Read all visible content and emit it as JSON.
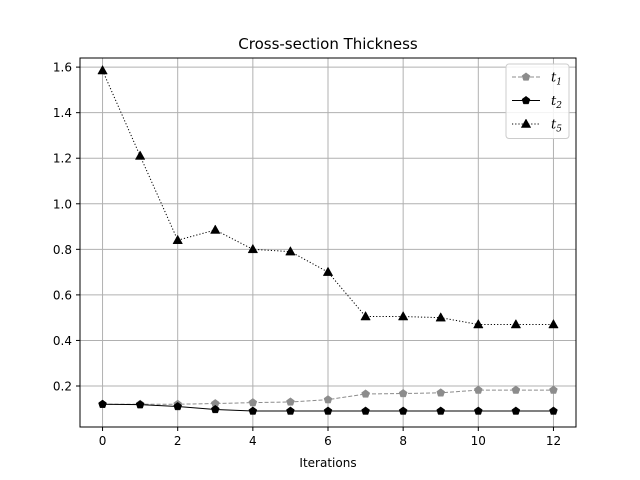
{
  "chart_data": {
    "type": "line",
    "title": "Cross-section Thickness",
    "xlabel": "Iterations",
    "ylabel": "",
    "xlim": [
      -0.6,
      12.6
    ],
    "ylim": [
      0.02,
      1.64
    ],
    "xticks": [
      0,
      2,
      4,
      6,
      8,
      10,
      12
    ],
    "yticks": [
      0.2,
      0.4,
      0.6,
      0.8,
      1.0,
      1.2,
      1.4,
      1.6
    ],
    "ytick_labels": [
      "0.2",
      "0.4",
      "0.6",
      "0.8",
      "1.0",
      "1.2",
      "1.4",
      "1.6"
    ],
    "grid": true,
    "legend_position": "top-right",
    "x": [
      0,
      1,
      2,
      3,
      4,
      5,
      6,
      7,
      8,
      9,
      10,
      11,
      12
    ],
    "series": [
      {
        "name": "t1",
        "label_base": "t",
        "label_sub": "1",
        "color": "#8c8c8c",
        "dash": "dashed",
        "marker": "pentagon",
        "values": [
          0.12,
          0.12,
          0.12,
          0.123,
          0.127,
          0.13,
          0.14,
          0.165,
          0.167,
          0.17,
          0.182,
          0.182,
          0.182
        ]
      },
      {
        "name": "t2",
        "label_base": "t",
        "label_sub": "2",
        "color": "#000000",
        "dash": "solid",
        "marker": "pentagon",
        "values": [
          0.12,
          0.118,
          0.11,
          0.097,
          0.09,
          0.09,
          0.09,
          0.09,
          0.09,
          0.09,
          0.09,
          0.09,
          0.09
        ]
      },
      {
        "name": "t5",
        "label_base": "t",
        "label_sub": "5",
        "color": "#000000",
        "dash": "dotted",
        "marker": "triangle",
        "values": [
          1.585,
          1.21,
          0.84,
          0.885,
          0.8,
          0.79,
          0.7,
          0.505,
          0.505,
          0.5,
          0.47,
          0.47,
          0.47
        ]
      }
    ]
  }
}
